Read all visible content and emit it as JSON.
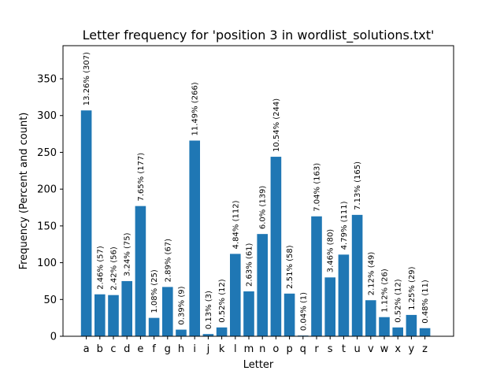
{
  "chart_data": {
    "type": "bar",
    "title": "Letter frequency for 'position 3 in wordlist_solutions.txt'",
    "xlabel": "Letter",
    "ylabel": "Frequency (Percent and count)",
    "ylim": [
      0,
      395
    ],
    "yticks": [
      0,
      50,
      100,
      150,
      200,
      250,
      300,
      350
    ],
    "categories": [
      "a",
      "b",
      "c",
      "d",
      "e",
      "f",
      "g",
      "h",
      "i",
      "j",
      "k",
      "l",
      "m",
      "n",
      "o",
      "p",
      "q",
      "r",
      "s",
      "t",
      "u",
      "v",
      "w",
      "x",
      "y",
      "z"
    ],
    "values": [
      307,
      57,
      56,
      75,
      177,
      25,
      67,
      9,
      266,
      3,
      12,
      112,
      61,
      139,
      244,
      58,
      1,
      163,
      80,
      111,
      165,
      49,
      26,
      12,
      29,
      11
    ],
    "labels": [
      "13.26% (307)",
      "2.46% (57)",
      "2.42% (56)",
      "3.24% (75)",
      "7.65% (177)",
      "1.08% (25)",
      "2.89% (67)",
      "0.39% (9)",
      "11.49% (266)",
      "0.13% (3)",
      "0.52% (12)",
      "4.84% (112)",
      "2.63% (61)",
      "6.0% (139)",
      "10.54% (244)",
      "2.51% (58)",
      "0.04% (1)",
      "7.04% (163)",
      "3.46% (80)",
      "4.79% (111)",
      "7.13% (165)",
      "2.12% (49)",
      "1.12% (26)",
      "0.52% (12)",
      "1.25% (29)",
      "0.48% (11)"
    ],
    "bar_color": "#1f77b4",
    "grid": false,
    "legend": "none"
  }
}
